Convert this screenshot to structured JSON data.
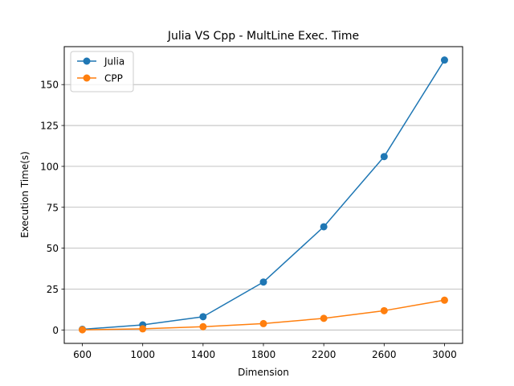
{
  "chart_data": {
    "type": "line",
    "title": "Julia VS Cpp - MultLine Exec. Time",
    "xlabel": "Dimension",
    "ylabel": "Execution Time(s)",
    "x": [
      600,
      1000,
      1400,
      1800,
      2200,
      2600,
      3000
    ],
    "xticks": [
      600,
      1000,
      1400,
      1800,
      2200,
      2600,
      3000
    ],
    "xlim": [
      480,
      3120
    ],
    "yticks": [
      0,
      25,
      50,
      75,
      100,
      125,
      150
    ],
    "ylim": [
      -8.2,
      173.2
    ],
    "grid": "y",
    "legend_position": "top-left",
    "series": [
      {
        "name": "Julia",
        "color": "#1f77b4",
        "values": [
          0.4,
          3.1,
          8.1,
          29.3,
          63.1,
          106.0,
          165.0
        ]
      },
      {
        "name": "CPP",
        "color": "#ff7f0e",
        "values": [
          0.1,
          0.7,
          2.0,
          3.9,
          7.1,
          11.8,
          18.2
        ]
      }
    ]
  }
}
